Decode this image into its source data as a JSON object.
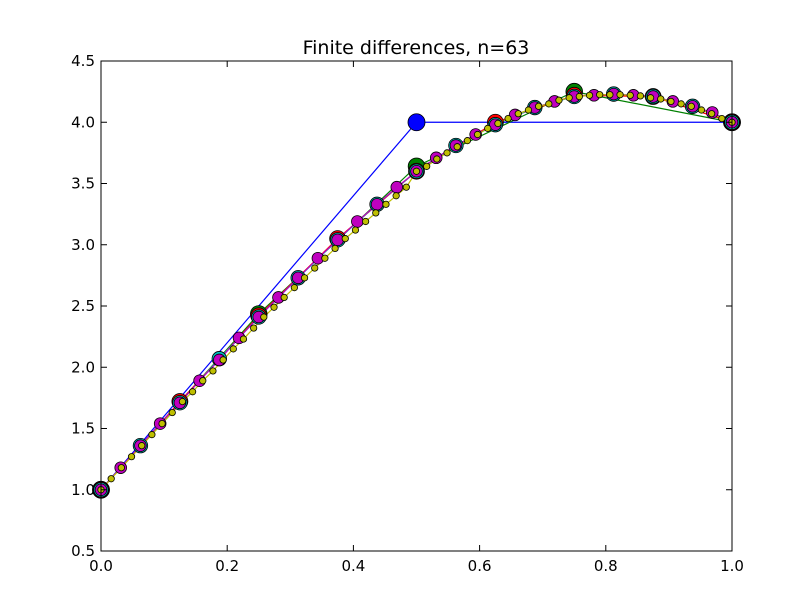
{
  "chart_data": {
    "type": "line",
    "title": "Finite differences, n=63",
    "xlabel": "",
    "ylabel": "",
    "xlim": [
      0.0,
      1.0
    ],
    "ylim": [
      0.5,
      4.5
    ],
    "x_ticks": [
      "0.0",
      "0.2",
      "0.4",
      "0.6",
      "0.8",
      "1.0"
    ],
    "y_ticks": [
      "0.5",
      "1.0",
      "1.5",
      "2.0",
      "2.5",
      "3.0",
      "3.5",
      "4.0",
      "4.5"
    ],
    "grid": false,
    "legend": "none",
    "series": [
      {
        "n": 3,
        "color": "#0000ff",
        "x": [
          0.0,
          0.5,
          1.0
        ],
        "y": [
          1.0,
          4.0,
          4.0
        ]
      },
      {
        "n": 5,
        "color": "#008000",
        "x": [
          0.0,
          0.25,
          0.5,
          0.75,
          1.0
        ],
        "y": [
          1.0,
          2.435,
          3.64,
          4.25,
          4.0
        ]
      },
      {
        "n": 9,
        "color": "#ff0000",
        "x": [
          0.0,
          0.125,
          0.25,
          0.375,
          0.5,
          0.625,
          0.75,
          0.875,
          1.0
        ],
        "y": [
          1.0,
          1.72,
          2.42,
          3.05,
          3.6,
          4.0,
          4.22,
          4.21,
          4.0
        ]
      },
      {
        "n": 17,
        "color": "#00bfbf",
        "x": [
          0.0,
          0.0625,
          0.125,
          0.1875,
          0.25,
          0.3125,
          0.375,
          0.4375,
          0.5,
          0.5625,
          0.625,
          0.6875,
          0.75,
          0.8125,
          0.875,
          0.9375,
          1.0
        ],
        "y": [
          1.0,
          1.36,
          1.71,
          2.07,
          2.41,
          2.73,
          3.04,
          3.33,
          3.6,
          3.81,
          3.98,
          4.12,
          4.21,
          4.23,
          4.21,
          4.13,
          4.0
        ]
      },
      {
        "n": 33,
        "color": "#bf00bf",
        "x": [
          0.0,
          0.03125,
          0.0625,
          0.09375,
          0.125,
          0.15625,
          0.1875,
          0.21875,
          0.25,
          0.28125,
          0.3125,
          0.34375,
          0.375,
          0.40625,
          0.4375,
          0.46875,
          0.5,
          0.53125,
          0.5625,
          0.59375,
          0.625,
          0.65625,
          0.6875,
          0.71875,
          0.75,
          0.78125,
          0.8125,
          0.84375,
          0.875,
          0.90625,
          0.9375,
          0.96875,
          1.0
        ],
        "y": [
          1.0,
          1.18,
          1.36,
          1.54,
          1.71,
          1.89,
          2.06,
          2.24,
          2.41,
          2.57,
          2.73,
          2.89,
          3.04,
          3.19,
          3.33,
          3.47,
          3.6,
          3.71,
          3.81,
          3.9,
          3.98,
          4.06,
          4.12,
          4.17,
          4.21,
          4.22,
          4.23,
          4.22,
          4.21,
          4.17,
          4.13,
          4.08,
          4.0
        ]
      },
      {
        "n": 63,
        "color": "#bfbf00",
        "x": [
          0.0,
          0.016129,
          0.032258,
          0.048387,
          0.064516,
          0.080645,
          0.096774,
          0.112903,
          0.129032,
          0.145161,
          0.16129,
          0.177419,
          0.193548,
          0.209677,
          0.225806,
          0.241935,
          0.258065,
          0.274194,
          0.290323,
          0.306452,
          0.322581,
          0.33871,
          0.354839,
          0.370968,
          0.387097,
          0.403226,
          0.419355,
          0.435484,
          0.451613,
          0.467742,
          0.483871,
          0.5,
          0.516129,
          0.532258,
          0.548387,
          0.564516,
          0.580645,
          0.596774,
          0.612903,
          0.629032,
          0.645161,
          0.66129,
          0.677419,
          0.693548,
          0.709677,
          0.725806,
          0.741935,
          0.758065,
          0.774194,
          0.790323,
          0.806452,
          0.822581,
          0.83871,
          0.854839,
          0.870968,
          0.887097,
          0.903226,
          0.919355,
          0.935484,
          0.951613,
          0.967742,
          0.983871,
          1.0
        ],
        "y": [
          1.0,
          1.09,
          1.18,
          1.27,
          1.36,
          1.45,
          1.54,
          1.63,
          1.72,
          1.8,
          1.89,
          1.97,
          2.06,
          2.15,
          2.23,
          2.32,
          2.41,
          2.49,
          2.57,
          2.65,
          2.73,
          2.81,
          2.89,
          2.97,
          3.05,
          3.12,
          3.19,
          3.26,
          3.33,
          3.4,
          3.47,
          3.6,
          3.64,
          3.7,
          3.75,
          3.8,
          3.85,
          3.9,
          3.95,
          3.99,
          4.03,
          4.07,
          4.1,
          4.13,
          4.15,
          4.18,
          4.2,
          4.21,
          4.22,
          4.225,
          4.225,
          4.225,
          4.22,
          4.215,
          4.2,
          4.19,
          4.17,
          4.15,
          4.13,
          4.1,
          4.07,
          4.03,
          4.0
        ]
      }
    ]
  }
}
